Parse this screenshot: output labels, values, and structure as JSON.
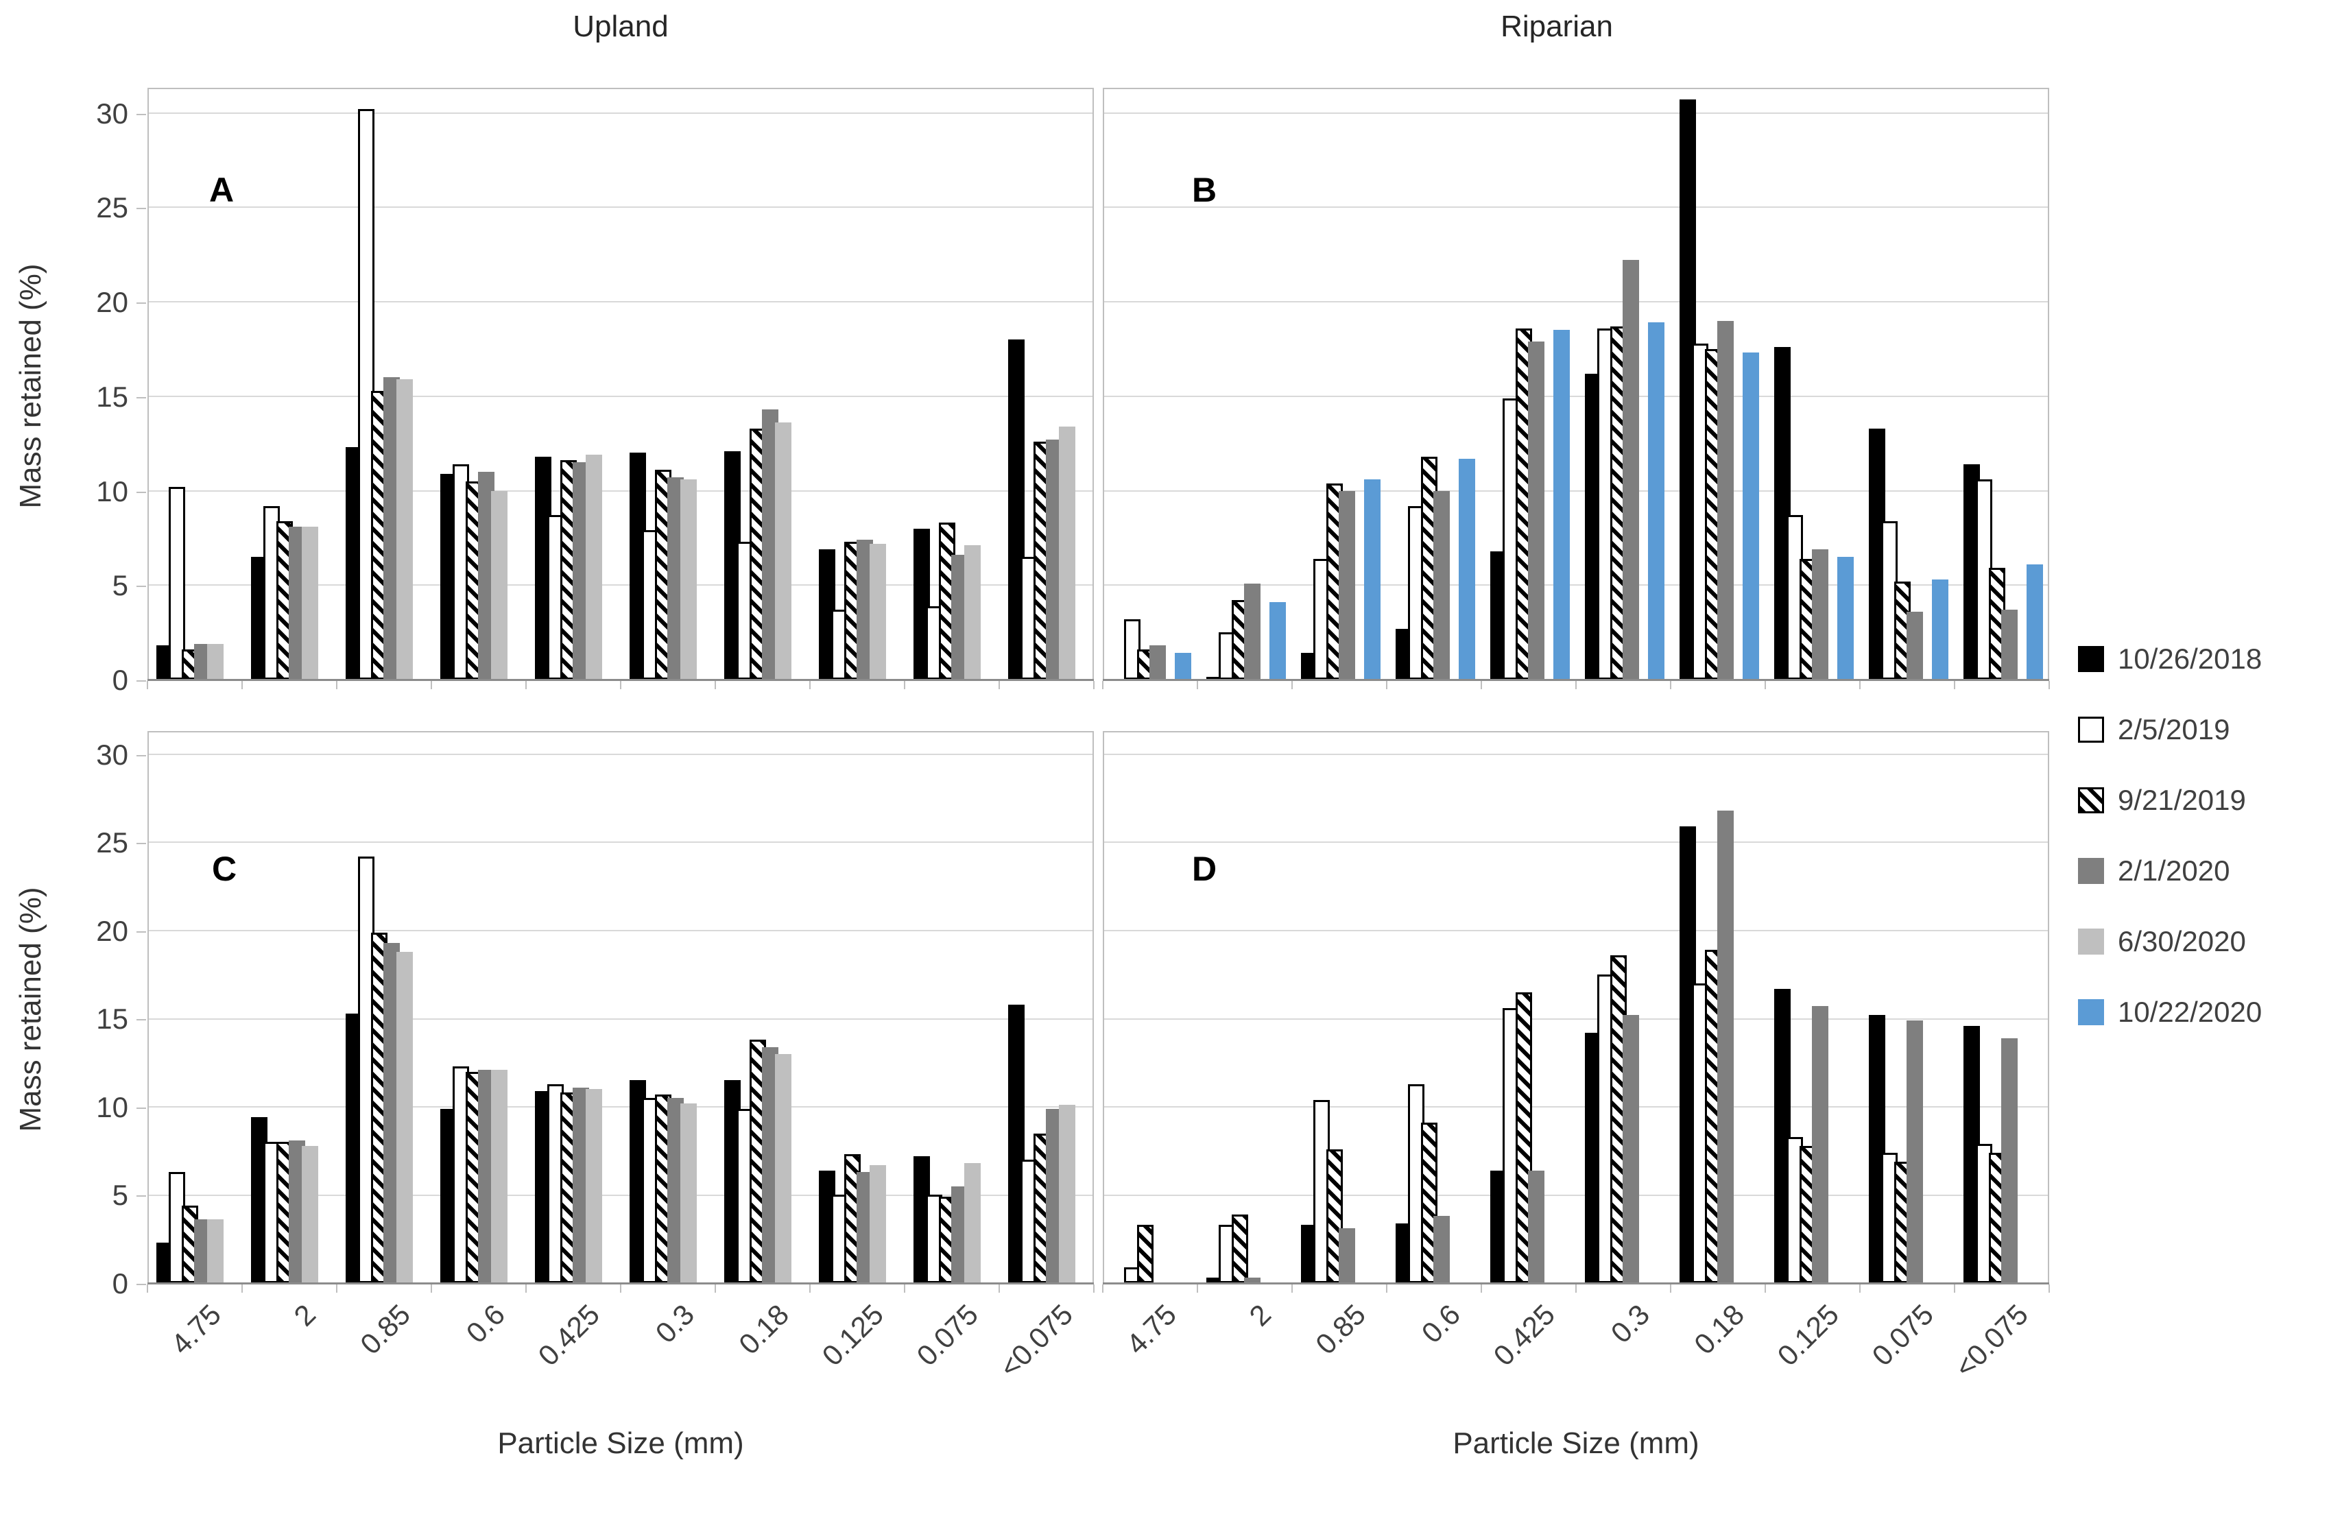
{
  "figure": {
    "column_titles": [
      "Upland",
      "Riparian"
    ],
    "x_axis_title": "Particle Size (mm)",
    "y_axis_title": "Mass retained (%)"
  },
  "legend": {
    "items": [
      {
        "label": "10/26/2018",
        "color": "#000000",
        "pattern": "solid"
      },
      {
        "label": "2/5/2019",
        "color": "#FFFFFF",
        "pattern": "outlined-white"
      },
      {
        "label": "9/21/2019",
        "color": "#000000",
        "pattern": "diagonal-hatch"
      },
      {
        "label": "2/1/2020",
        "color": "#7F7F7F",
        "pattern": "solid"
      },
      {
        "label": "6/30/2020",
        "color": "#BFBFBF",
        "pattern": "solid"
      },
      {
        "label": "10/22/2020",
        "color": "#5B9BD5",
        "pattern": "solid"
      }
    ]
  },
  "chart_data": {
    "type": "bar",
    "title": "",
    "xlabel": "Particle Size (mm)",
    "ylabel": "Mass retained (%)",
    "categories": [
      "4.75",
      "2",
      "0.85",
      "0.6",
      "0.425",
      "0.3",
      "0.18",
      "0.125",
      "0.075",
      "<0.075"
    ],
    "y_ticks": [
      30,
      25,
      20,
      15,
      10,
      5,
      0
    ],
    "ylim": [
      0,
      31.4
    ],
    "grid": "horizontal",
    "legend_position": "right",
    "panels": [
      {
        "id": "A",
        "letter": "A",
        "site": "Upland",
        "row": "top",
        "series": [
          {
            "name": "10/26/2018",
            "values": [
              1.8,
              6.5,
              12.3,
              10.9,
              11.8,
              12.0,
              12.1,
              6.9,
              8.0,
              18.0
            ]
          },
          {
            "name": "2/5/2019",
            "values": [
              10.2,
              9.2,
              30.2,
              11.4,
              8.7,
              7.9,
              7.3,
              3.7,
              3.9,
              6.5
            ]
          },
          {
            "name": "9/21/2019",
            "values": [
              1.6,
              8.4,
              15.3,
              10.5,
              11.6,
              11.1,
              13.3,
              7.3,
              8.3,
              12.6
            ]
          },
          {
            "name": "2/1/2020",
            "values": [
              1.9,
              8.1,
              16.0,
              11.0,
              11.5,
              10.7,
              14.3,
              7.4,
              6.6,
              12.7
            ]
          },
          {
            "name": "6/30/2020",
            "values": [
              1.9,
              8.1,
              15.9,
              10.0,
              11.9,
              10.6,
              13.6,
              7.2,
              7.1,
              13.4
            ]
          },
          {
            "name": "10/22/2020",
            "values": null
          }
        ]
      },
      {
        "id": "B",
        "letter": "B",
        "site": "Riparian",
        "row": "top",
        "series": [
          {
            "name": "10/26/2018",
            "values": [
              null,
              0.15,
              1.4,
              2.7,
              6.8,
              16.2,
              30.7,
              17.6,
              13.3,
              11.4
            ]
          },
          {
            "name": "2/5/2019",
            "values": [
              3.2,
              2.5,
              6.4,
              9.2,
              14.9,
              18.6,
              17.8,
              8.7,
              8.4,
              10.6
            ]
          },
          {
            "name": "9/21/2019",
            "values": [
              1.6,
              4.2,
              10.4,
              11.8,
              18.6,
              18.7,
              17.5,
              6.4,
              5.2,
              5.9
            ]
          },
          {
            "name": "2/1/2020",
            "values": [
              1.8,
              5.1,
              10.0,
              10.0,
              17.9,
              22.2,
              19.0,
              6.9,
              3.6,
              3.7
            ]
          },
          {
            "name": "6/30/2020",
            "values": null
          },
          {
            "name": "10/22/2020",
            "values": [
              1.4,
              4.1,
              10.6,
              11.7,
              18.5,
              18.9,
              17.3,
              6.5,
              5.3,
              6.1
            ]
          }
        ]
      },
      {
        "id": "C",
        "letter": "C",
        "site": "Upland",
        "row": "bottom",
        "series": [
          {
            "name": "10/26/2018",
            "values": [
              2.3,
              9.4,
              15.3,
              9.9,
              10.9,
              11.5,
              11.5,
              6.4,
              7.2,
              15.8
            ]
          },
          {
            "name": "2/5/2019",
            "values": [
              6.3,
              8.0,
              24.2,
              12.3,
              11.3,
              10.5,
              9.9,
              5.0,
              5.0,
              7.0
            ]
          },
          {
            "name": "9/21/2019",
            "values": [
              4.4,
              8.0,
              19.9,
              12.0,
              10.8,
              10.7,
              13.8,
              7.3,
              4.9,
              8.5
            ]
          },
          {
            "name": "2/1/2020",
            "values": [
              3.6,
              8.1,
              19.3,
              12.1,
              11.1,
              10.5,
              13.4,
              6.3,
              5.5,
              9.9
            ]
          },
          {
            "name": "6/30/2020",
            "values": [
              3.6,
              7.8,
              18.8,
              12.1,
              11.0,
              10.2,
              13.0,
              6.7,
              6.8,
              10.1
            ]
          },
          {
            "name": "10/22/2020",
            "values": null
          }
        ]
      },
      {
        "id": "D",
        "letter": "D",
        "site": "Riparian",
        "row": "bottom",
        "series": [
          {
            "name": "10/26/2018",
            "values": [
              null,
              0.3,
              3.3,
              3.4,
              6.4,
              14.2,
              25.9,
              16.7,
              15.2,
              14.6
            ]
          },
          {
            "name": "2/5/2019",
            "values": [
              0.9,
              3.3,
              10.4,
              11.3,
              15.6,
              17.5,
              17.0,
              8.3,
              7.4,
              7.9
            ]
          },
          {
            "name": "9/21/2019",
            "values": [
              3.3,
              3.9,
              7.6,
              9.1,
              16.5,
              18.6,
              18.9,
              7.8,
              6.9,
              7.4
            ]
          },
          {
            "name": "2/1/2020",
            "values": [
              null,
              0.3,
              3.1,
              3.8,
              6.4,
              15.2,
              26.8,
              15.7,
              14.9,
              13.9
            ]
          },
          {
            "name": "6/30/2020",
            "values": null
          },
          {
            "name": "10/22/2020",
            "values": null
          }
        ]
      }
    ]
  }
}
